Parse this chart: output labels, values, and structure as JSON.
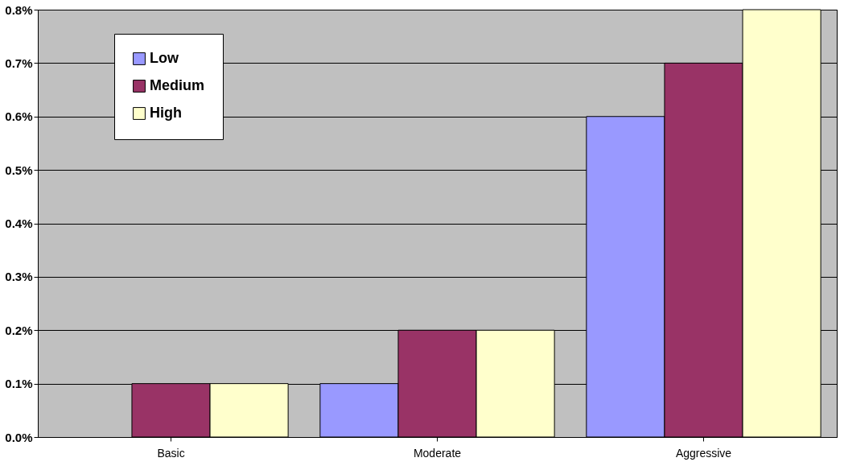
{
  "chart_data": {
    "type": "bar",
    "categories": [
      "Basic",
      "Moderate",
      "Aggressive"
    ],
    "series": [
      {
        "name": "Low",
        "color": "#9999ff",
        "values": [
          0,
          0.1,
          0.6
        ]
      },
      {
        "name": "Medium",
        "color": "#993366",
        "values": [
          0.1,
          0.2,
          0.7
        ]
      },
      {
        "name": "High",
        "color": "#ffffcc",
        "values": [
          0.1,
          0.2,
          0.8
        ]
      }
    ],
    "ylim": [
      0,
      0.8
    ],
    "yticks": [
      {
        "value": 0,
        "label": "0.0%"
      },
      {
        "value": 0.1,
        "label": "0.1%"
      },
      {
        "value": 0.2,
        "label": "0.2%"
      },
      {
        "value": 0.3,
        "label": "0.3%"
      },
      {
        "value": 0.4,
        "label": "0.4%"
      },
      {
        "value": 0.5,
        "label": "0.5%"
      },
      {
        "value": 0.6,
        "label": "0.6%"
      },
      {
        "value": 0.7,
        "label": "0.7%"
      },
      {
        "value": 0.8,
        "label": "0.8%"
      }
    ],
    "grid": "y",
    "legend": "top left"
  }
}
